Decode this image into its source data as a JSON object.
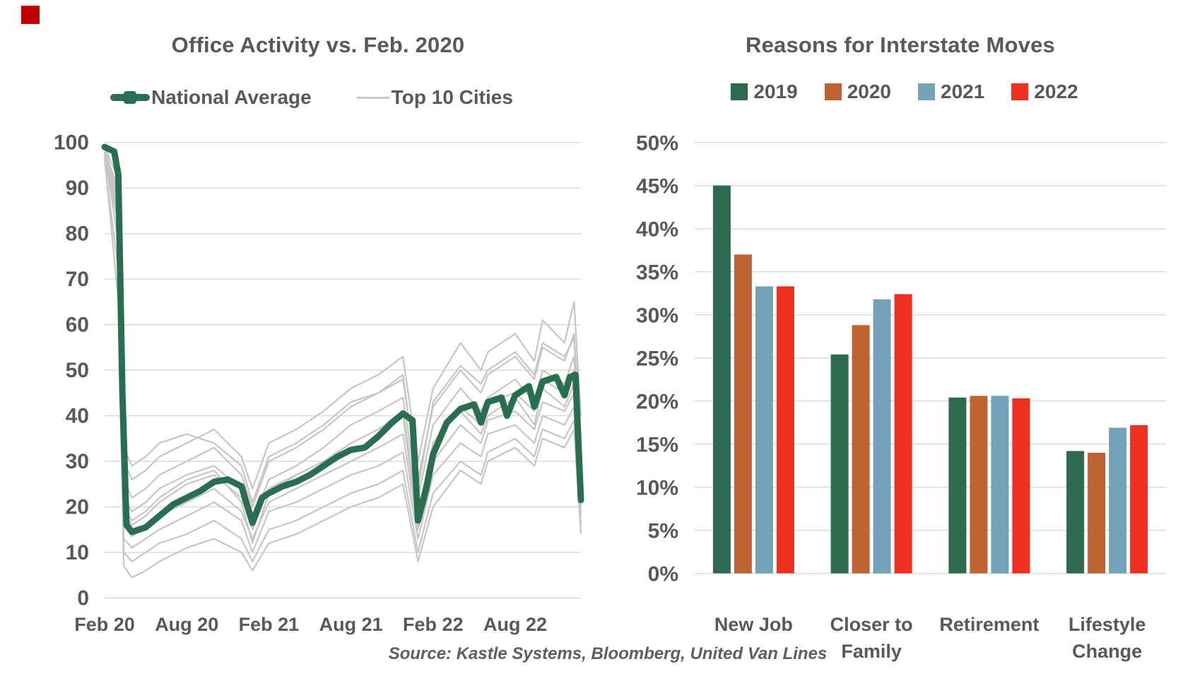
{
  "marks": {
    "corner_color": "#C00000"
  },
  "source": "Source: Kastle Systems, Bloomberg, United Van Lines",
  "chart_data": [
    {
      "type": "line",
      "title": "Office Activity vs. Feb. 2020",
      "legend": {
        "national": "National Average",
        "cities": "Top 10 Cities"
      },
      "colors": {
        "national": "#2A6E52",
        "cities": "#C6C6C6",
        "grid": "#D9D9D9",
        "text": "#595959"
      },
      "y_axis": {
        "labels": [
          "100",
          "90",
          "80",
          "70",
          "60",
          "50",
          "40",
          "30",
          "20",
          "10",
          "0"
        ],
        "values": [
          100,
          90,
          80,
          70,
          60,
          50,
          40,
          30,
          20,
          10,
          0
        ],
        "range": [
          0,
          100
        ]
      },
      "x_axis": {
        "labels": [
          "Feb 20",
          "Aug 20",
          "Feb 21",
          "Aug 21",
          "Feb 22",
          "Aug 22"
        ],
        "months": [
          0,
          6,
          12,
          18,
          24,
          30
        ]
      },
      "series": {
        "national": {
          "x": [
            0,
            0.7,
            1.0,
            1.3,
            1.6,
            2,
            3,
            4,
            5,
            6,
            7,
            8,
            9,
            10,
            10.8,
            11.5,
            12,
            13,
            14,
            15,
            16,
            17,
            18,
            19,
            20,
            21,
            21.8,
            22.5,
            22.9,
            23.5,
            24,
            25,
            26,
            27,
            27.5,
            28,
            29,
            29.4,
            30,
            31,
            31.4,
            32,
            33,
            33.6,
            34,
            34.4,
            34.8
          ],
          "y": [
            99,
            98,
            93,
            45,
            16,
            14.5,
            15.5,
            18,
            20.5,
            22,
            23.5,
            25.5,
            26,
            24.5,
            16.5,
            22,
            23,
            24.5,
            25.5,
            27,
            29,
            31,
            32.5,
            33,
            35.5,
            38.5,
            40.5,
            39,
            17,
            24,
            31.5,
            38.5,
            41.5,
            42.5,
            38.5,
            43,
            44,
            40,
            44.5,
            46.5,
            42,
            47.5,
            48.5,
            44.5,
            48.5,
            49,
            21.5
          ]
        },
        "top_10_cities": {
          "x": [
            0,
            1,
            1.4,
            2,
            3,
            4,
            6,
            8,
            10,
            10.8,
            12,
            14,
            16,
            18,
            20,
            21.8,
            22.9,
            24,
            26,
            27.5,
            28,
            30,
            31.4,
            32,
            33.6,
            34.3,
            34.8
          ],
          "lines": [
            [
              98,
              90,
              30,
              26,
              28,
              31,
              34,
              37,
              31,
              24,
              34,
              37,
              41,
              46,
              49,
              53,
              30,
              46,
              56,
              50,
              54,
              58,
              52,
              61,
              56,
              65,
              40
            ],
            [
              97,
              86,
              26,
              22,
              24,
              27,
              30,
              33,
              27,
              20,
              30,
              33,
              37,
              42,
              45,
              48,
              26,
              42,
              50,
              45,
              49,
              53,
              48,
              55,
              52,
              58,
              35
            ],
            [
              99,
              88,
              22,
              19,
              21,
              24,
              27,
              29,
              24,
              17,
              26,
              29,
              33,
              38,
              41,
              44,
              22,
              38,
              46,
              41,
              44,
              48,
              43,
              50,
              47,
              53,
              30
            ],
            [
              98,
              84,
              19,
              16,
              18,
              21,
              25,
              27,
              22,
              15,
              24,
              27,
              30,
              34,
              37,
              41,
              19,
              34,
              42,
              38,
              43,
              45,
              41,
              48,
              45,
              50,
              25
            ],
            [
              97,
              82,
              16,
              13.5,
              15.5,
              18,
              21,
              24,
              19,
              13,
              21,
              24,
              27,
              30,
              33,
              36,
              15,
              30,
              38,
              34,
              39,
              41,
              37,
              43,
              41,
              45,
              20
            ],
            [
              98,
              78,
              13,
              11,
              13,
              15,
              18,
              21,
              17,
              10,
              19,
              21,
              24,
              27,
              29,
              32,
              13,
              27,
              34,
              31,
              36,
              38,
              34,
              40,
              38,
              42,
              18
            ],
            [
              96,
              72,
              10,
              8,
              10,
              12,
              14,
              17,
              13,
              8,
              15,
              17,
              20,
              23,
              25,
              28,
              10,
              23,
              30,
              27,
              32,
              35,
              31,
              37,
              35,
              39,
              16
            ],
            [
              97,
              65,
              7,
              4.5,
              6,
              8,
              11,
              13,
              10,
              6,
              12,
              14,
              17,
              20,
              22,
              25,
              8,
              20,
              28,
              25,
              30,
              33,
              29,
              35,
              33,
              37,
              14
            ],
            [
              98,
              87,
              20,
              17,
              19,
              22,
              26,
              28,
              21,
              12,
              23,
              27,
              30,
              34,
              37,
              40,
              16,
              34,
              41,
              36,
              40,
              44,
              38,
              46,
              42,
              47,
              22
            ],
            [
              99,
              92,
              33,
              29,
              31,
              34,
              36,
              34,
              29,
              21,
              31,
              34,
              38,
              43,
              45,
              49,
              24,
              43,
              51,
              47,
              50,
              54,
              49,
              56,
              53,
              57,
              32
            ]
          ]
        }
      }
    },
    {
      "type": "bar",
      "title": "Reasons for Interstate Moves",
      "colors": {
        "grid": "#D9D9D9",
        "text": "#595959"
      },
      "y_axis": {
        "labels": [
          "50%",
          "45%",
          "40%",
          "35%",
          "30%",
          "25%",
          "20%",
          "15%",
          "10%",
          "5%",
          "0%"
        ],
        "values": [
          50,
          45,
          40,
          35,
          30,
          25,
          20,
          15,
          10,
          5,
          0
        ],
        "range": [
          0,
          50
        ]
      },
      "categories": [
        [
          "New Job"
        ],
        [
          "Closer to",
          "Family"
        ],
        [
          "Retirement"
        ],
        [
          "Lifestyle",
          "Change"
        ]
      ],
      "series": [
        {
          "name": "2019",
          "color": "#2D6A4F",
          "values": [
            45.0,
            25.4,
            20.4,
            14.2
          ]
        },
        {
          "name": "2020",
          "color": "#BE6333",
          "values": [
            37.0,
            28.8,
            20.6,
            14.0
          ]
        },
        {
          "name": "2021",
          "color": "#74A2B9",
          "values": [
            33.3,
            31.8,
            20.6,
            16.9
          ]
        },
        {
          "name": "2022",
          "color": "#EE3023",
          "values": [
            33.3,
            32.4,
            20.3,
            17.2
          ]
        }
      ]
    }
  ]
}
